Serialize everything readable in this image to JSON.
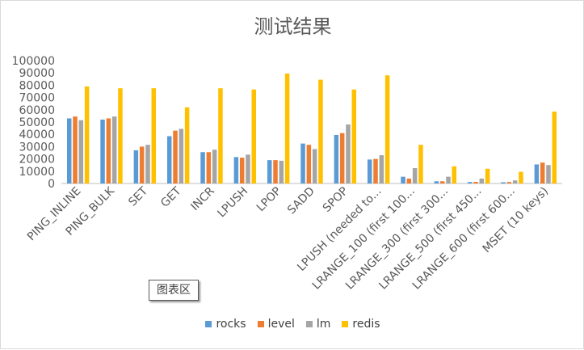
{
  "chart_data": {
    "type": "bar",
    "title": "测试结果",
    "xlabel": "",
    "ylabel": "",
    "ylim": [
      0,
      100000
    ],
    "yticks": [
      "0",
      "10000",
      "20000",
      "30000",
      "40000",
      "50000",
      "60000",
      "70000",
      "80000",
      "90000",
      "100000"
    ],
    "grid": false,
    "legend_position": "bottom",
    "categories": [
      "PING_INLINE",
      "PING_BULK",
      "SET",
      "GET",
      "INCR",
      "LPUSH",
      "LPOP",
      "SADD",
      "SPOP",
      "LPUSH (needed to...",
      "LRANGE_100 (first 100...",
      "LRANGE_300 (first 300...",
      "LRANGE_500 (first 450...",
      "LRANGE_600 (first 600...",
      "MSET (10 keys)"
    ],
    "series": [
      {
        "name": "rocks",
        "color": "#5b9bd5",
        "values": [
          53000,
          52000,
          27000,
          38500,
          25500,
          21500,
          19000,
          32500,
          39500,
          19500,
          5500,
          1800,
          1200,
          1000,
          15500
        ]
      },
      {
        "name": "level",
        "color": "#ed7d31",
        "values": [
          54500,
          53000,
          30000,
          43000,
          25500,
          21000,
          19000,
          31500,
          41000,
          20000,
          4000,
          1800,
          1300,
          1200,
          17000
        ]
      },
      {
        "name": "lm",
        "color": "#a5a5a5",
        "values": [
          51500,
          54500,
          31500,
          44500,
          27500,
          23500,
          18500,
          28000,
          48000,
          23000,
          12500,
          5500,
          4000,
          2500,
          15000
        ]
      },
      {
        "name": "redis",
        "color": "#ffc000",
        "values": [
          79000,
          77500,
          77500,
          62000,
          77500,
          76500,
          89500,
          84500,
          76500,
          88000,
          31500,
          14000,
          12000,
          9500,
          58500
        ]
      }
    ]
  },
  "chart_area_label": "图表区"
}
